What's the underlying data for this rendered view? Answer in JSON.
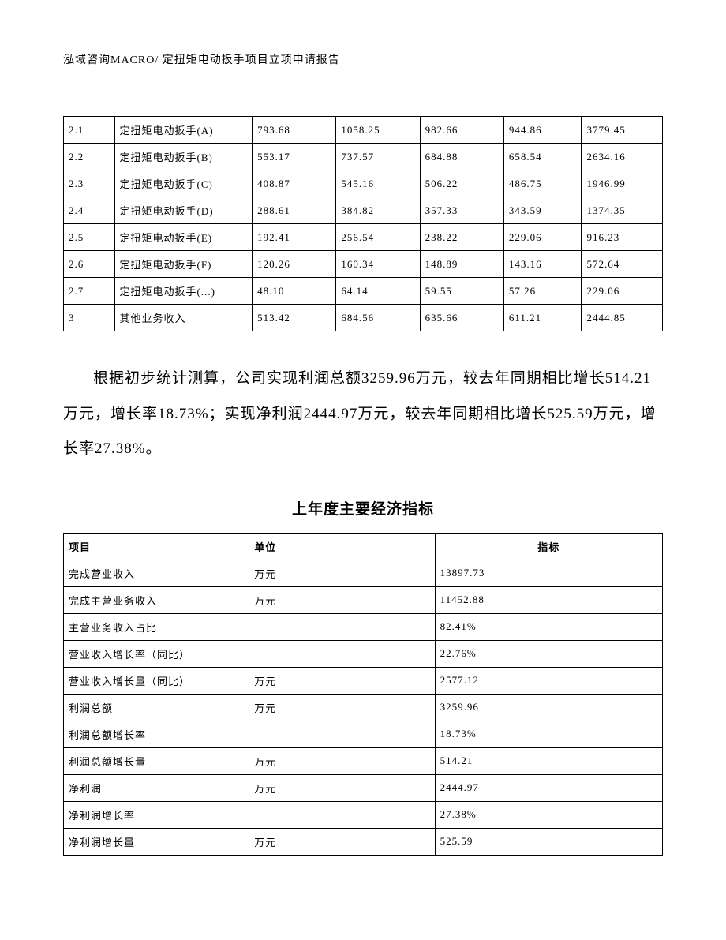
{
  "header": {
    "text": "泓域咨询MACRO/   定扭矩电动扳手项目立项申请报告"
  },
  "table1": {
    "col_widths": [
      "8.5%",
      "23%",
      "14%",
      "14%",
      "14%",
      "13%",
      "13.5%"
    ],
    "rows": [
      [
        "2.1",
        "定扭矩电动扳手(A)",
        "793.68",
        "1058.25",
        "982.66",
        "944.86",
        "3779.45"
      ],
      [
        "2.2",
        "定扭矩电动扳手(B)",
        "553.17",
        "737.57",
        "684.88",
        "658.54",
        "2634.16"
      ],
      [
        "2.3",
        "定扭矩电动扳手(C)",
        "408.87",
        "545.16",
        "506.22",
        "486.75",
        "1946.99"
      ],
      [
        "2.4",
        "定扭矩电动扳手(D)",
        "288.61",
        "384.82",
        "357.33",
        "343.59",
        "1374.35"
      ],
      [
        "2.5",
        "定扭矩电动扳手(E)",
        "192.41",
        "256.54",
        "238.22",
        "229.06",
        "916.23"
      ],
      [
        "2.6",
        "定扭矩电动扳手(F)",
        "120.26",
        "160.34",
        "148.89",
        "143.16",
        "572.64"
      ],
      [
        "2.7",
        "定扭矩电动扳手(...)",
        "48.10",
        "64.14",
        "59.55",
        "57.26",
        "229.06"
      ],
      [
        "3",
        "其他业务收入",
        "513.42",
        "684.56",
        "635.66",
        "611.21",
        "2444.85"
      ]
    ]
  },
  "paragraph": {
    "text": "根据初步统计测算，公司实现利润总额3259.96万元，较去年同期相比增长514.21万元，增长率18.73%；实现净利润2444.97万元，较去年同期相比增长525.59万元，增长率27.38%。"
  },
  "section_title": "上年度主要经济指标",
  "table2": {
    "col_widths": [
      "31%",
      "31%",
      "38%"
    ],
    "headers": [
      "项目",
      "单位",
      "指标"
    ],
    "rows": [
      [
        "完成营业收入",
        "万元",
        "13897.73"
      ],
      [
        "完成主营业务收入",
        "万元",
        "11452.88"
      ],
      [
        "主营业务收入占比",
        "",
        "82.41%"
      ],
      [
        "营业收入增长率（同比）",
        "",
        "22.76%"
      ],
      [
        "营业收入增长量（同比）",
        "万元",
        "2577.12"
      ],
      [
        "利润总额",
        "万元",
        "3259.96"
      ],
      [
        "利润总额增长率",
        "",
        "18.73%"
      ],
      [
        "利润总额增长量",
        "万元",
        "514.21"
      ],
      [
        "净利润",
        "万元",
        "2444.97"
      ],
      [
        "净利润增长率",
        "",
        "27.38%"
      ],
      [
        "净利润增长量",
        "万元",
        "525.59"
      ]
    ]
  }
}
